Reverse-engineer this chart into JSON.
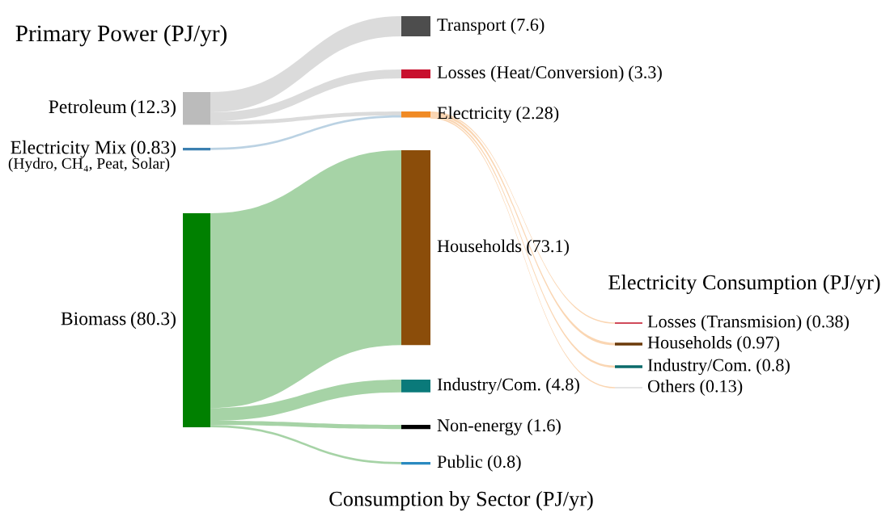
{
  "chart_data": {
    "type": "other",
    "annotations": [
      "Primary Power (PJ/yr)",
      "Consumption by Sector (PJ/yr)",
      "Electricity Consumption (PJ/yr)",
      "(Hydro, CH₄, Peat, Solar)"
    ],
    "value_labels": [
      "(12.3)",
      "(0.83)",
      "(80.3)",
      "(7.6)",
      "(3.3)",
      "(2.28)",
      "(73.1)",
      "(4.8)",
      "(1.6)",
      "(0.8)",
      "(0.38)",
      "(0.97)",
      "(0.8)",
      "(0.13)"
    ],
    "categories": [
      "Petroleum",
      "Electricity Mix",
      "Biomass",
      "Transport",
      "Losses (Heat/Conversion)",
      "Electricity",
      "Households",
      "Industry/Com.",
      "Non-energy",
      "Public",
      "Losses (Transmision)",
      "Households",
      "Industry/Com.",
      "Others"
    ],
    "values": [
      12.3,
      0.83,
      80.3,
      7.6,
      3.3,
      2.28,
      73.1,
      4.8,
      1.6,
      0.8,
      0.38,
      0.97,
      0.8,
      0.13
    ],
    "colors": [
      "#bbbbbb",
      "#3b7fb0",
      "#008000",
      "#4d4d4d",
      "#c8102e",
      "#f08a24",
      "#8b4d0a",
      "#0a7a7a",
      "#000000",
      "#2a8ac0",
      "#d04a5a",
      "#6b3a0a",
      "#0a6a6a",
      "#e4e4e4"
    ]
  }
}
